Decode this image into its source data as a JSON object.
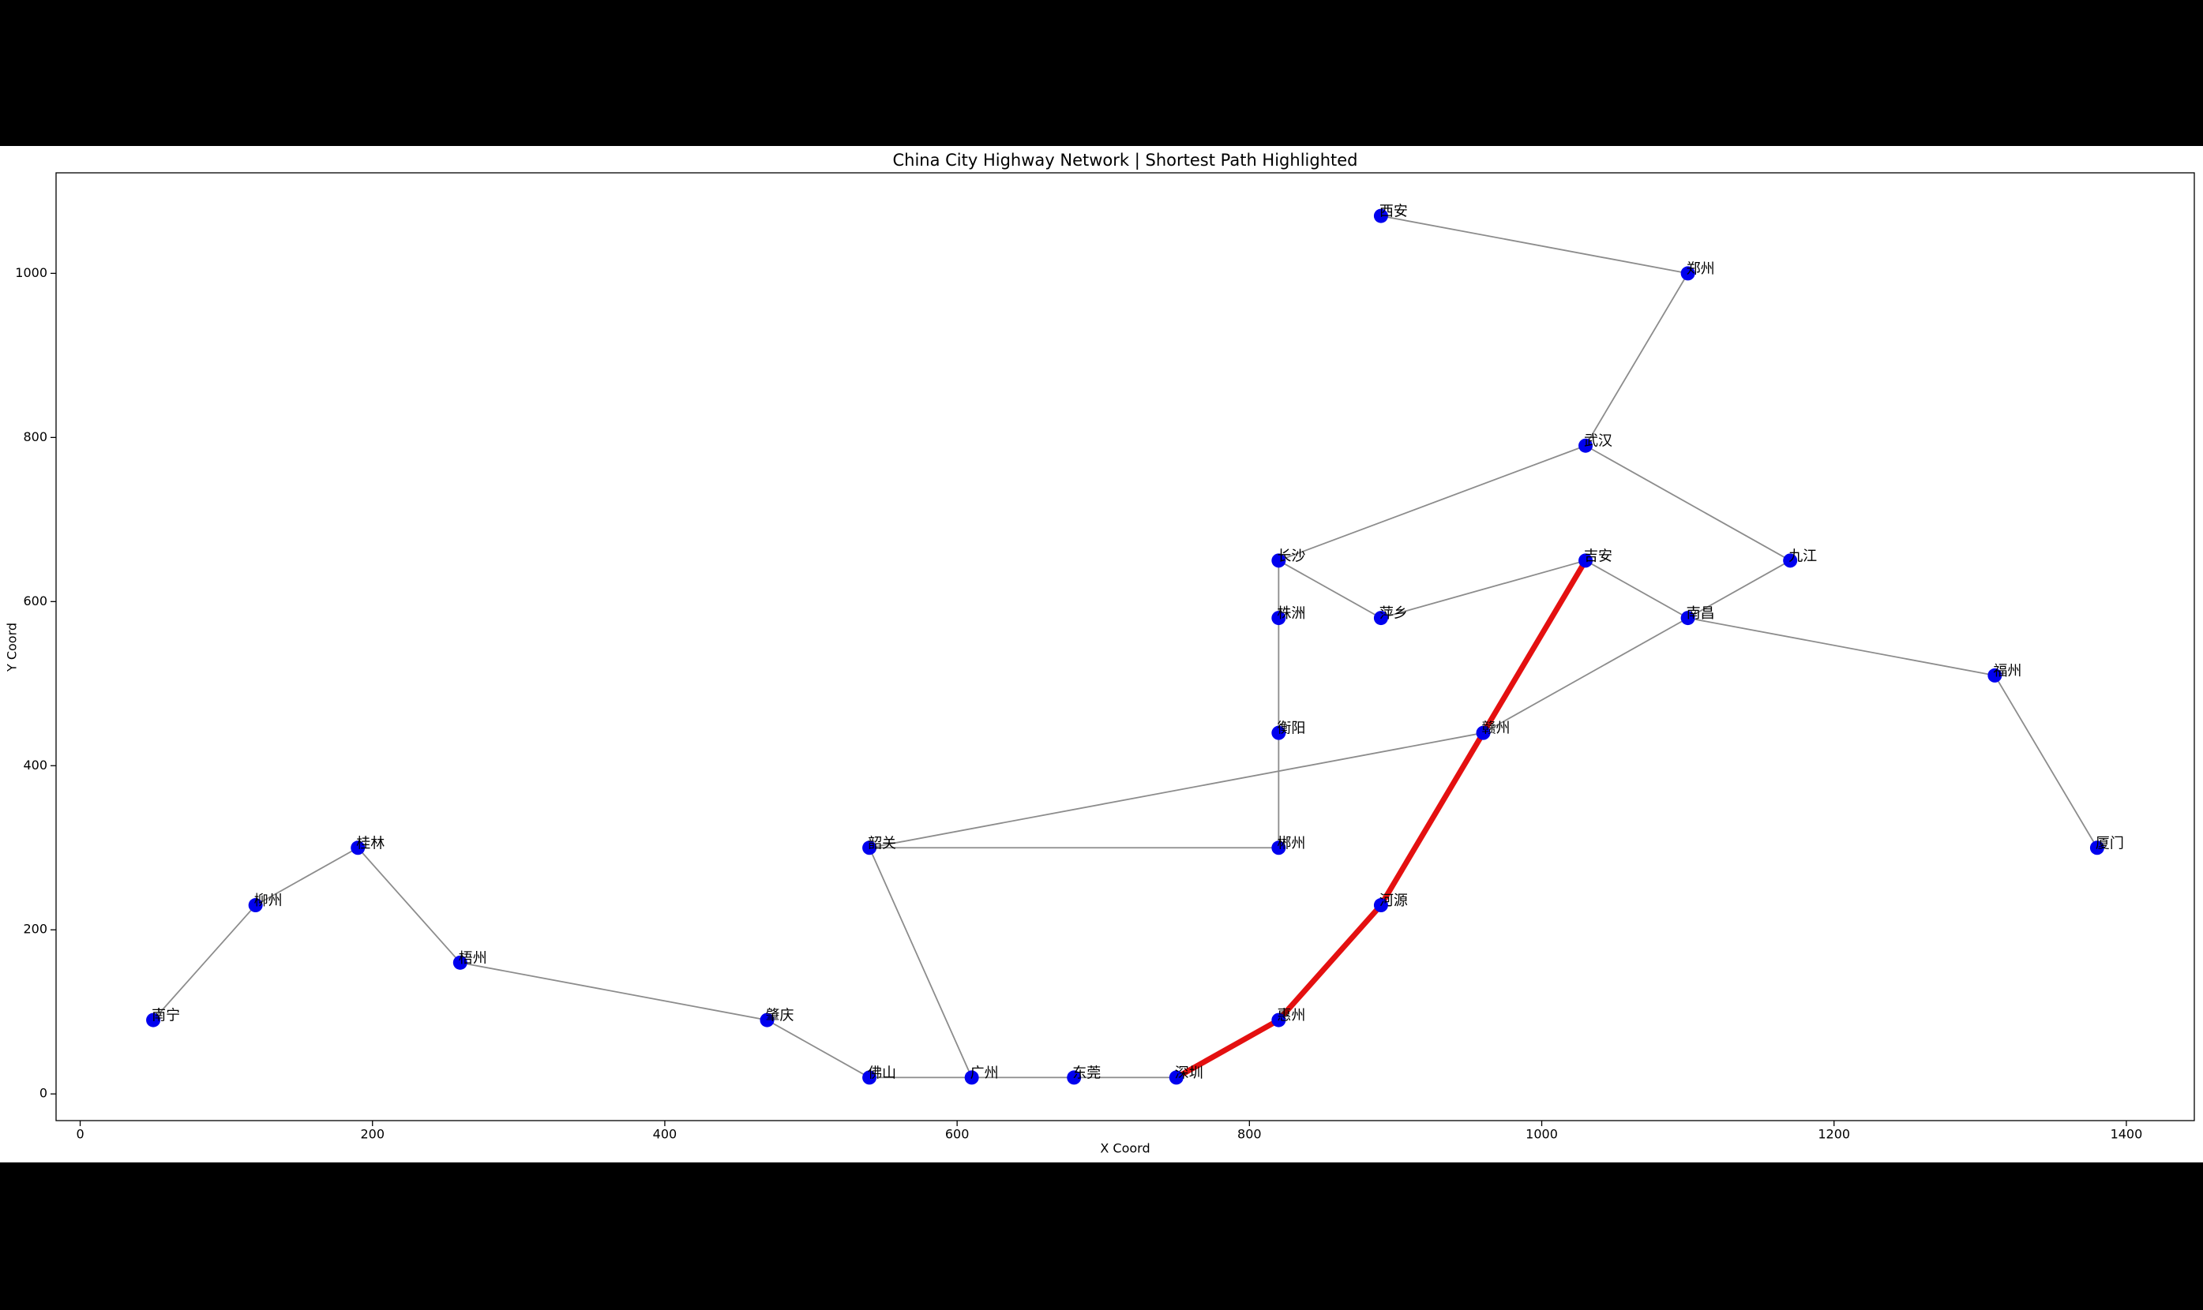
{
  "chart_data": {
    "type": "network",
    "title": "China City Highway Network | Shortest Path Highlighted",
    "x_label": "X Coord",
    "y_label": "Y Coord",
    "labels": [
      "西安",
      "郑州",
      "武汉",
      "长沙",
      "吉安",
      "九江",
      "株洲",
      "萍乡",
      "南昌",
      "福州",
      "衡阳",
      "赣州",
      "韶关",
      "郴州",
      "厦门",
      "桂林",
      "柳州",
      "河源",
      "梧州",
      "南宁",
      "肇庆",
      "惠州",
      "佛山",
      "广州",
      "东莞",
      "深圳"
    ],
    "x": [
      890,
      1100,
      1030,
      820,
      1030,
      1170,
      820,
      890,
      1100,
      1310,
      820,
      960,
      540,
      820,
      1380,
      190,
      120,
      890,
      260,
      50,
      470,
      820,
      540,
      610,
      680,
      750
    ],
    "y": [
      1070,
      1000,
      790,
      650,
      650,
      650,
      580,
      580,
      580,
      510,
      440,
      440,
      300,
      300,
      300,
      300,
      230,
      230,
      160,
      90,
      90,
      90,
      20,
      20,
      20,
      20
    ],
    "edges": [
      [
        "西安",
        "郑州"
      ],
      [
        "郑州",
        "武汉"
      ],
      [
        "武汉",
        "长沙"
      ],
      [
        "武汉",
        "九江"
      ],
      [
        "长沙",
        "萍乡"
      ],
      [
        "萍乡",
        "吉安"
      ],
      [
        "吉安",
        "南昌"
      ],
      [
        "九江",
        "南昌"
      ],
      [
        "南昌",
        "福州"
      ],
      [
        "福州",
        "厦门"
      ],
      [
        "南昌",
        "赣州"
      ],
      [
        "赣州",
        "韶关"
      ],
      [
        "长沙",
        "株洲"
      ],
      [
        "株洲",
        "衡阳"
      ],
      [
        "衡阳",
        "郴州"
      ],
      [
        "郴州",
        "韶关"
      ],
      [
        "韶关",
        "广州"
      ],
      [
        "南宁",
        "柳州"
      ],
      [
        "柳州",
        "桂林"
      ],
      [
        "桂林",
        "梧州"
      ],
      [
        "梧州",
        "肇庆"
      ],
      [
        "肇庆",
        "佛山"
      ],
      [
        "佛山",
        "广州"
      ],
      [
        "广州",
        "东莞"
      ],
      [
        "东莞",
        "深圳"
      ],
      [
        "深圳",
        "惠州"
      ],
      [
        "惠州",
        "河源"
      ],
      [
        "河源",
        "赣州"
      ],
      [
        "赣州",
        "吉安"
      ]
    ],
    "path": [
      "深圳",
      "惠州",
      "河源",
      "赣州",
      "吉安"
    ],
    "node_color": "#0000ee",
    "edge_color": "#8c8c8c",
    "path_color": "#e41010",
    "xlim": [
      -16.5,
      1446.5
    ],
    "ylim": [
      -32.5,
      1122.5
    ],
    "xticks": [
      0,
      200,
      400,
      600,
      800,
      1000,
      1200,
      1400
    ],
    "yticks": [
      0,
      200,
      400,
      600,
      800,
      1000
    ]
  }
}
